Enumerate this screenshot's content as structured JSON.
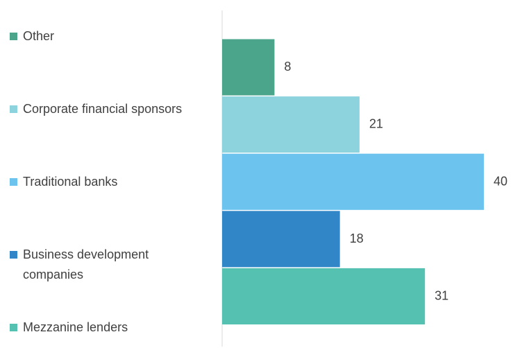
{
  "chart_data": {
    "type": "hbar",
    "categories": [
      "Other",
      "Corporate financial sponsors",
      "Traditional banks",
      "Business development companies",
      "Mezzanine lenders"
    ],
    "values": [
      8,
      21,
      40,
      18,
      31
    ],
    "colors": [
      "#4aa58b",
      "#8dd3de",
      "#6cc4ee",
      "#3186c8",
      "#55c1b0"
    ],
    "xlim": [
      0,
      40
    ]
  }
}
